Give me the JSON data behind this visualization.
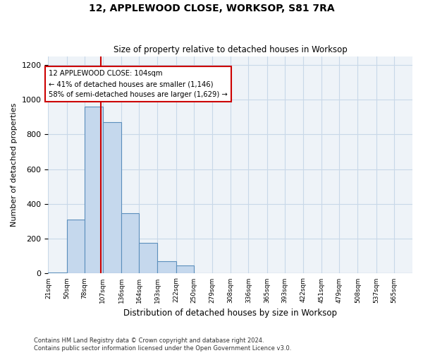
{
  "title": "12, APPLEWOOD CLOSE, WORKSOP, S81 7RA",
  "subtitle": "Size of property relative to detached houses in Worksop",
  "xlabel": "Distribution of detached houses by size in Worksop",
  "ylabel": "Number of detached properties",
  "footnote1": "Contains HM Land Registry data © Crown copyright and database right 2024.",
  "footnote2": "Contains public sector information licensed under the Open Government Licence v3.0.",
  "bar_color": "#c5d8ed",
  "bar_edge_color": "#5b8fbc",
  "grid_color": "#c8d8e8",
  "annotation_box_color": "#cc0000",
  "annotation_line_color": "#cc0000",
  "annotation_text_line1": "12 APPLEWOOD CLOSE: 104sqm",
  "annotation_text_line2": "← 41% of detached houses are smaller (1,146)",
  "annotation_text_line3": "58% of semi-detached houses are larger (1,629) →",
  "property_size_sqm": 104,
  "bin_edges": [
    21,
    50,
    78,
    107,
    136,
    164,
    193,
    222,
    250,
    279,
    308,
    336,
    365,
    393,
    422,
    451,
    479,
    508,
    537,
    565,
    594
  ],
  "bin_counts": [
    5,
    310,
    960,
    870,
    345,
    175,
    70,
    45,
    3,
    0,
    0,
    0,
    0,
    0,
    0,
    3,
    0,
    3,
    0,
    0
  ],
  "ylim": [
    0,
    1250
  ],
  "yticks": [
    0,
    200,
    400,
    600,
    800,
    1000,
    1200
  ],
  "figsize": [
    6.0,
    5.0
  ],
  "dpi": 100,
  "bg_color": "#eef3f8"
}
